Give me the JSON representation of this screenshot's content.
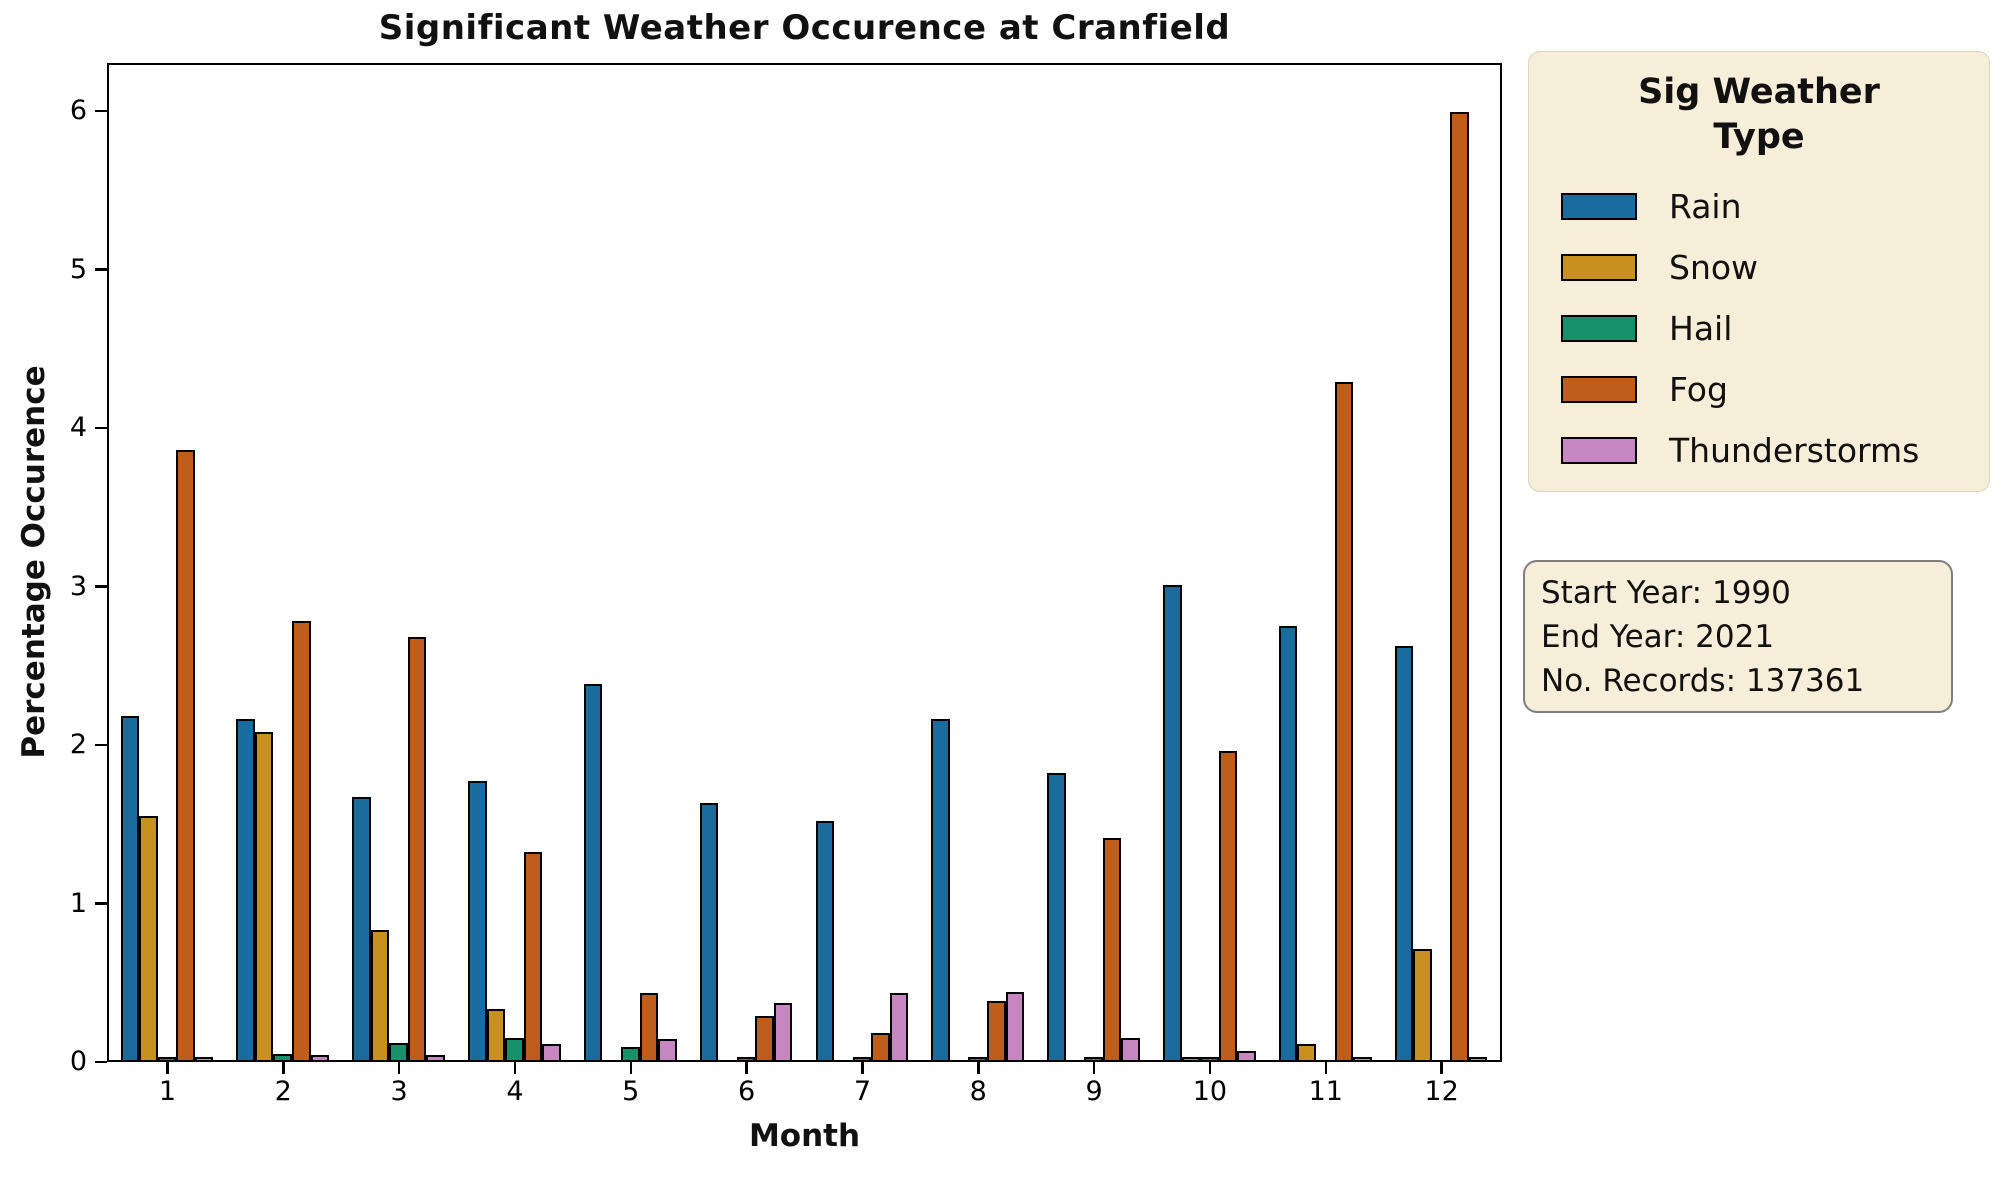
{
  "title": "Significant Weather Occurence at Cranfield",
  "axes": {
    "xlabel": "Month",
    "ylabel": "Percentage Occurence",
    "ytick_labels": [
      "0",
      "1",
      "2",
      "3",
      "4",
      "5",
      "6"
    ],
    "ytick_values": [
      0,
      1,
      2,
      3,
      4,
      5,
      6
    ]
  },
  "legend": {
    "title_line1": "Sig Weather",
    "title_line2": "Type",
    "items": [
      "Rain",
      "Snow",
      "Hail",
      "Fog",
      "Thunderstorms"
    ]
  },
  "info_box": {
    "lines": [
      "Start Year: 1990",
      "End Year: 2021",
      "No. Records: 137361"
    ]
  },
  "chart_data": {
    "type": "bar",
    "grouped": true,
    "categories": [
      "1",
      "2",
      "3",
      "4",
      "5",
      "6",
      "7",
      "8",
      "9",
      "10",
      "11",
      "12"
    ],
    "series": [
      {
        "name": "Rain",
        "color": "#1a6c9e",
        "values": [
          2.17,
          2.15,
          1.66,
          1.76,
          2.37,
          1.62,
          1.51,
          2.15,
          1.81,
          3.0,
          2.74,
          2.61
        ]
      },
      {
        "name": "Snow",
        "color": "#c8901f",
        "values": [
          1.54,
          2.07,
          0.82,
          0.32,
          0.0,
          0.0,
          0.0,
          0.0,
          0.0,
          0.01,
          0.1,
          0.7
        ]
      },
      {
        "name": "Hail",
        "color": "#15926c",
        "values": [
          0.02,
          0.04,
          0.11,
          0.14,
          0.08,
          0.01,
          0.01,
          0.01,
          0.01,
          0.01,
          0.0,
          0.0
        ]
      },
      {
        "name": "Fog",
        "color": "#bf5e1b",
        "values": [
          3.85,
          2.77,
          2.67,
          1.31,
          0.42,
          0.28,
          0.17,
          0.37,
          1.4,
          1.95,
          4.28,
          5.98
        ]
      },
      {
        "name": "Thunderstorms",
        "color": "#c686c1",
        "values": [
          0.01,
          0.03,
          0.03,
          0.1,
          0.13,
          0.36,
          0.42,
          0.43,
          0.14,
          0.06,
          0.01,
          0.01
        ]
      }
    ],
    "title": "Significant Weather Occurence at Cranfield",
    "xlabel": "Month",
    "ylabel": "Percentage Occurence",
    "ylim": [
      0,
      6.27
    ],
    "grid": false,
    "legend_position": "outside-right",
    "bar_edge_color": "#000000",
    "annotation_box": "Start Year: 1990 / End Year: 2021 / No. Records: 137361"
  }
}
